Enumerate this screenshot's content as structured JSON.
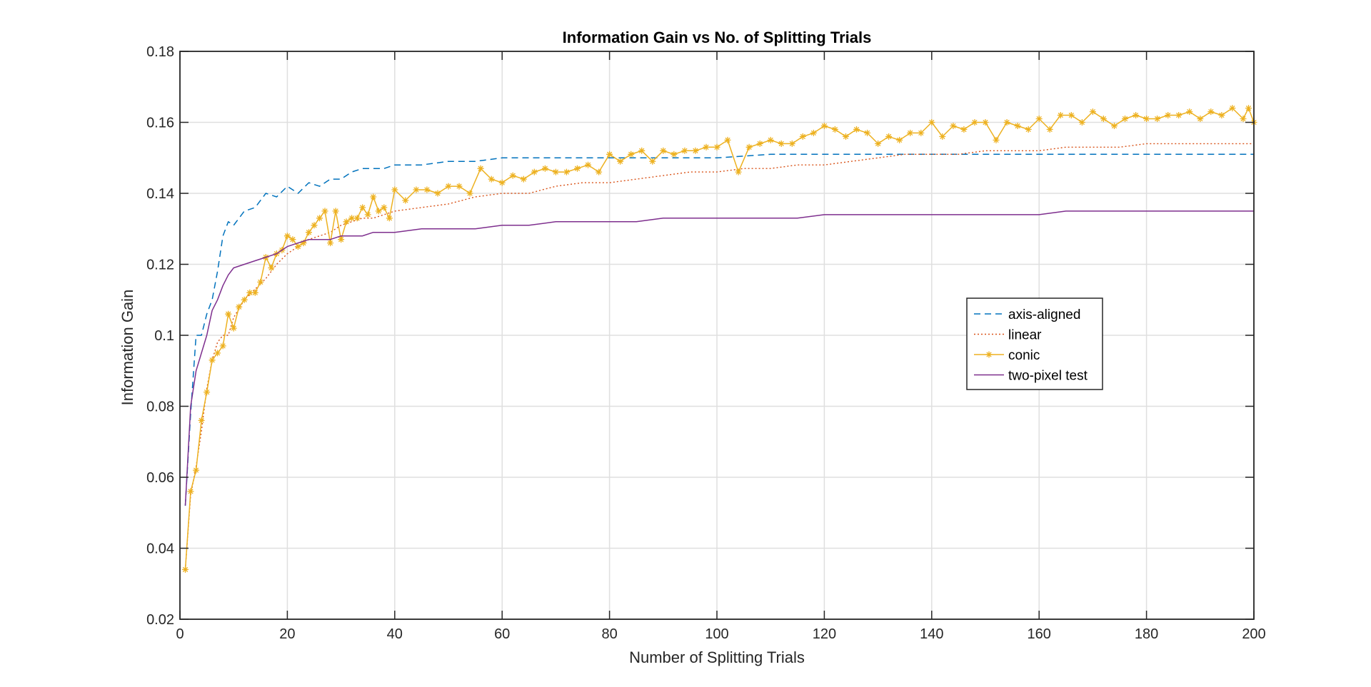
{
  "chart_data": {
    "type": "line",
    "title": "Information Gain vs No. of Splitting Trials",
    "xlabel": "Number of Splitting Trials",
    "ylabel": "Information Gain",
    "xlim": [
      0,
      200
    ],
    "ylim": [
      0.02,
      0.18
    ],
    "x_ticks": [
      "0",
      "20",
      "40",
      "60",
      "80",
      "100",
      "120",
      "140",
      "160",
      "180",
      "200"
    ],
    "y_ticks": [
      "0.02",
      "0.04",
      "0.06",
      "0.08",
      "0.1",
      "0.12",
      "0.14",
      "0.16",
      "0.18"
    ],
    "grid": true,
    "legend_position": "center-right",
    "series": [
      {
        "name": "axis-aligned",
        "color": "#0072BD",
        "style": "dashed",
        "points": [
          [
            1,
            0.052
          ],
          [
            2,
            0.078
          ],
          [
            3,
            0.1
          ],
          [
            4,
            0.1
          ],
          [
            5,
            0.106
          ],
          [
            6,
            0.11
          ],
          [
            7,
            0.118
          ],
          [
            8,
            0.128
          ],
          [
            9,
            0.132
          ],
          [
            10,
            0.131
          ],
          [
            12,
            0.135
          ],
          [
            14,
            0.136
          ],
          [
            16,
            0.14
          ],
          [
            18,
            0.139
          ],
          [
            20,
            0.142
          ],
          [
            22,
            0.14
          ],
          [
            24,
            0.143
          ],
          [
            26,
            0.142
          ],
          [
            28,
            0.144
          ],
          [
            30,
            0.144
          ],
          [
            32,
            0.146
          ],
          [
            34,
            0.147
          ],
          [
            36,
            0.147
          ],
          [
            38,
            0.147
          ],
          [
            40,
            0.148
          ],
          [
            45,
            0.148
          ],
          [
            50,
            0.149
          ],
          [
            55,
            0.149
          ],
          [
            60,
            0.15
          ],
          [
            65,
            0.15
          ],
          [
            70,
            0.15
          ],
          [
            75,
            0.15
          ],
          [
            80,
            0.15
          ],
          [
            90,
            0.15
          ],
          [
            100,
            0.15
          ],
          [
            110,
            0.151
          ],
          [
            120,
            0.151
          ],
          [
            130,
            0.151
          ],
          [
            140,
            0.151
          ],
          [
            150,
            0.151
          ],
          [
            160,
            0.151
          ],
          [
            170,
            0.151
          ],
          [
            180,
            0.151
          ],
          [
            190,
            0.151
          ],
          [
            200,
            0.151
          ]
        ]
      },
      {
        "name": "linear",
        "color": "#D95319",
        "style": "dotted",
        "points": [
          [
            1,
            0.034
          ],
          [
            2,
            0.055
          ],
          [
            3,
            0.063
          ],
          [
            4,
            0.073
          ],
          [
            5,
            0.085
          ],
          [
            6,
            0.093
          ],
          [
            7,
            0.098
          ],
          [
            8,
            0.1
          ],
          [
            9,
            0.1
          ],
          [
            10,
            0.105
          ],
          [
            12,
            0.11
          ],
          [
            14,
            0.113
          ],
          [
            16,
            0.116
          ],
          [
            18,
            0.12
          ],
          [
            20,
            0.123
          ],
          [
            22,
            0.125
          ],
          [
            24,
            0.127
          ],
          [
            26,
            0.128
          ],
          [
            28,
            0.129
          ],
          [
            30,
            0.131
          ],
          [
            32,
            0.132
          ],
          [
            34,
            0.133
          ],
          [
            36,
            0.133
          ],
          [
            38,
            0.134
          ],
          [
            40,
            0.135
          ],
          [
            45,
            0.136
          ],
          [
            50,
            0.137
          ],
          [
            55,
            0.139
          ],
          [
            60,
            0.14
          ],
          [
            65,
            0.14
          ],
          [
            70,
            0.142
          ],
          [
            75,
            0.143
          ],
          [
            80,
            0.143
          ],
          [
            85,
            0.144
          ],
          [
            90,
            0.145
          ],
          [
            95,
            0.146
          ],
          [
            100,
            0.146
          ],
          [
            105,
            0.147
          ],
          [
            110,
            0.147
          ],
          [
            115,
            0.148
          ],
          [
            120,
            0.148
          ],
          [
            125,
            0.149
          ],
          [
            130,
            0.15
          ],
          [
            135,
            0.151
          ],
          [
            140,
            0.151
          ],
          [
            145,
            0.151
          ],
          [
            150,
            0.152
          ],
          [
            155,
            0.152
          ],
          [
            160,
            0.152
          ],
          [
            165,
            0.153
          ],
          [
            170,
            0.153
          ],
          [
            175,
            0.153
          ],
          [
            180,
            0.154
          ],
          [
            185,
            0.154
          ],
          [
            190,
            0.154
          ],
          [
            195,
            0.154
          ],
          [
            200,
            0.154
          ]
        ]
      },
      {
        "name": "conic",
        "color": "#EDB120",
        "style": "solid-star",
        "points": [
          [
            1,
            0.034
          ],
          [
            2,
            0.056
          ],
          [
            3,
            0.062
          ],
          [
            4,
            0.076
          ],
          [
            5,
            0.084
          ],
          [
            6,
            0.093
          ],
          [
            7,
            0.095
          ],
          [
            8,
            0.097
          ],
          [
            9,
            0.106
          ],
          [
            10,
            0.102
          ],
          [
            11,
            0.108
          ],
          [
            12,
            0.11
          ],
          [
            13,
            0.112
          ],
          [
            14,
            0.112
          ],
          [
            15,
            0.115
          ],
          [
            16,
            0.122
          ],
          [
            17,
            0.119
          ],
          [
            18,
            0.123
          ],
          [
            19,
            0.124
          ],
          [
            20,
            0.128
          ],
          [
            21,
            0.127
          ],
          [
            22,
            0.125
          ],
          [
            23,
            0.126
          ],
          [
            24,
            0.129
          ],
          [
            25,
            0.131
          ],
          [
            26,
            0.133
          ],
          [
            27,
            0.135
          ],
          [
            28,
            0.126
          ],
          [
            29,
            0.135
          ],
          [
            30,
            0.127
          ],
          [
            31,
            0.132
          ],
          [
            32,
            0.133
          ],
          [
            33,
            0.133
          ],
          [
            34,
            0.136
          ],
          [
            35,
            0.134
          ],
          [
            36,
            0.139
          ],
          [
            37,
            0.135
          ],
          [
            38,
            0.136
          ],
          [
            39,
            0.133
          ],
          [
            40,
            0.141
          ],
          [
            42,
            0.138
          ],
          [
            44,
            0.141
          ],
          [
            46,
            0.141
          ],
          [
            48,
            0.14
          ],
          [
            50,
            0.142
          ],
          [
            52,
            0.142
          ],
          [
            54,
            0.14
          ],
          [
            56,
            0.147
          ],
          [
            58,
            0.144
          ],
          [
            60,
            0.143
          ],
          [
            62,
            0.145
          ],
          [
            64,
            0.144
          ],
          [
            66,
            0.146
          ],
          [
            68,
            0.147
          ],
          [
            70,
            0.146
          ],
          [
            72,
            0.146
          ],
          [
            74,
            0.147
          ],
          [
            76,
            0.148
          ],
          [
            78,
            0.146
          ],
          [
            80,
            0.151
          ],
          [
            82,
            0.149
          ],
          [
            84,
            0.151
          ],
          [
            86,
            0.152
          ],
          [
            88,
            0.149
          ],
          [
            90,
            0.152
          ],
          [
            92,
            0.151
          ],
          [
            94,
            0.152
          ],
          [
            96,
            0.152
          ],
          [
            98,
            0.153
          ],
          [
            100,
            0.153
          ],
          [
            102,
            0.155
          ],
          [
            104,
            0.146
          ],
          [
            106,
            0.153
          ],
          [
            108,
            0.154
          ],
          [
            110,
            0.155
          ],
          [
            112,
            0.154
          ],
          [
            114,
            0.154
          ],
          [
            116,
            0.156
          ],
          [
            118,
            0.157
          ],
          [
            120,
            0.159
          ],
          [
            122,
            0.158
          ],
          [
            124,
            0.156
          ],
          [
            126,
            0.158
          ],
          [
            128,
            0.157
          ],
          [
            130,
            0.154
          ],
          [
            132,
            0.156
          ],
          [
            134,
            0.155
          ],
          [
            136,
            0.157
          ],
          [
            138,
            0.157
          ],
          [
            140,
            0.16
          ],
          [
            142,
            0.156
          ],
          [
            144,
            0.159
          ],
          [
            146,
            0.158
          ],
          [
            148,
            0.16
          ],
          [
            150,
            0.16
          ],
          [
            152,
            0.155
          ],
          [
            154,
            0.16
          ],
          [
            156,
            0.159
          ],
          [
            158,
            0.158
          ],
          [
            160,
            0.161
          ],
          [
            162,
            0.158
          ],
          [
            164,
            0.162
          ],
          [
            166,
            0.162
          ],
          [
            168,
            0.16
          ],
          [
            170,
            0.163
          ],
          [
            172,
            0.161
          ],
          [
            174,
            0.159
          ],
          [
            176,
            0.161
          ],
          [
            178,
            0.162
          ],
          [
            180,
            0.161
          ],
          [
            182,
            0.161
          ],
          [
            184,
            0.162
          ],
          [
            186,
            0.162
          ],
          [
            188,
            0.163
          ],
          [
            190,
            0.161
          ],
          [
            192,
            0.163
          ],
          [
            194,
            0.162
          ],
          [
            196,
            0.164
          ],
          [
            198,
            0.161
          ],
          [
            199,
            0.164
          ],
          [
            200,
            0.16
          ]
        ]
      },
      {
        "name": "two-pixel test",
        "color": "#7E2F8E",
        "style": "solid",
        "points": [
          [
            1,
            0.052
          ],
          [
            2,
            0.08
          ],
          [
            3,
            0.09
          ],
          [
            4,
            0.095
          ],
          [
            5,
            0.1
          ],
          [
            6,
            0.107
          ],
          [
            7,
            0.11
          ],
          [
            8,
            0.114
          ],
          [
            9,
            0.117
          ],
          [
            10,
            0.119
          ],
          [
            12,
            0.12
          ],
          [
            14,
            0.121
          ],
          [
            16,
            0.122
          ],
          [
            18,
            0.123
          ],
          [
            20,
            0.125
          ],
          [
            22,
            0.126
          ],
          [
            24,
            0.127
          ],
          [
            26,
            0.127
          ],
          [
            28,
            0.127
          ],
          [
            30,
            0.128
          ],
          [
            32,
            0.128
          ],
          [
            34,
            0.128
          ],
          [
            36,
            0.129
          ],
          [
            38,
            0.129
          ],
          [
            40,
            0.129
          ],
          [
            45,
            0.13
          ],
          [
            50,
            0.13
          ],
          [
            55,
            0.13
          ],
          [
            60,
            0.131
          ],
          [
            65,
            0.131
          ],
          [
            70,
            0.132
          ],
          [
            75,
            0.132
          ],
          [
            80,
            0.132
          ],
          [
            85,
            0.132
          ],
          [
            90,
            0.133
          ],
          [
            95,
            0.133
          ],
          [
            100,
            0.133
          ],
          [
            105,
            0.133
          ],
          [
            110,
            0.133
          ],
          [
            115,
            0.133
          ],
          [
            120,
            0.134
          ],
          [
            125,
            0.134
          ],
          [
            130,
            0.134
          ],
          [
            135,
            0.134
          ],
          [
            140,
            0.134
          ],
          [
            145,
            0.134
          ],
          [
            150,
            0.134
          ],
          [
            155,
            0.134
          ],
          [
            160,
            0.134
          ],
          [
            165,
            0.135
          ],
          [
            170,
            0.135
          ],
          [
            175,
            0.135
          ],
          [
            180,
            0.135
          ],
          [
            185,
            0.135
          ],
          [
            190,
            0.135
          ],
          [
            195,
            0.135
          ],
          [
            200,
            0.135
          ]
        ]
      }
    ]
  }
}
